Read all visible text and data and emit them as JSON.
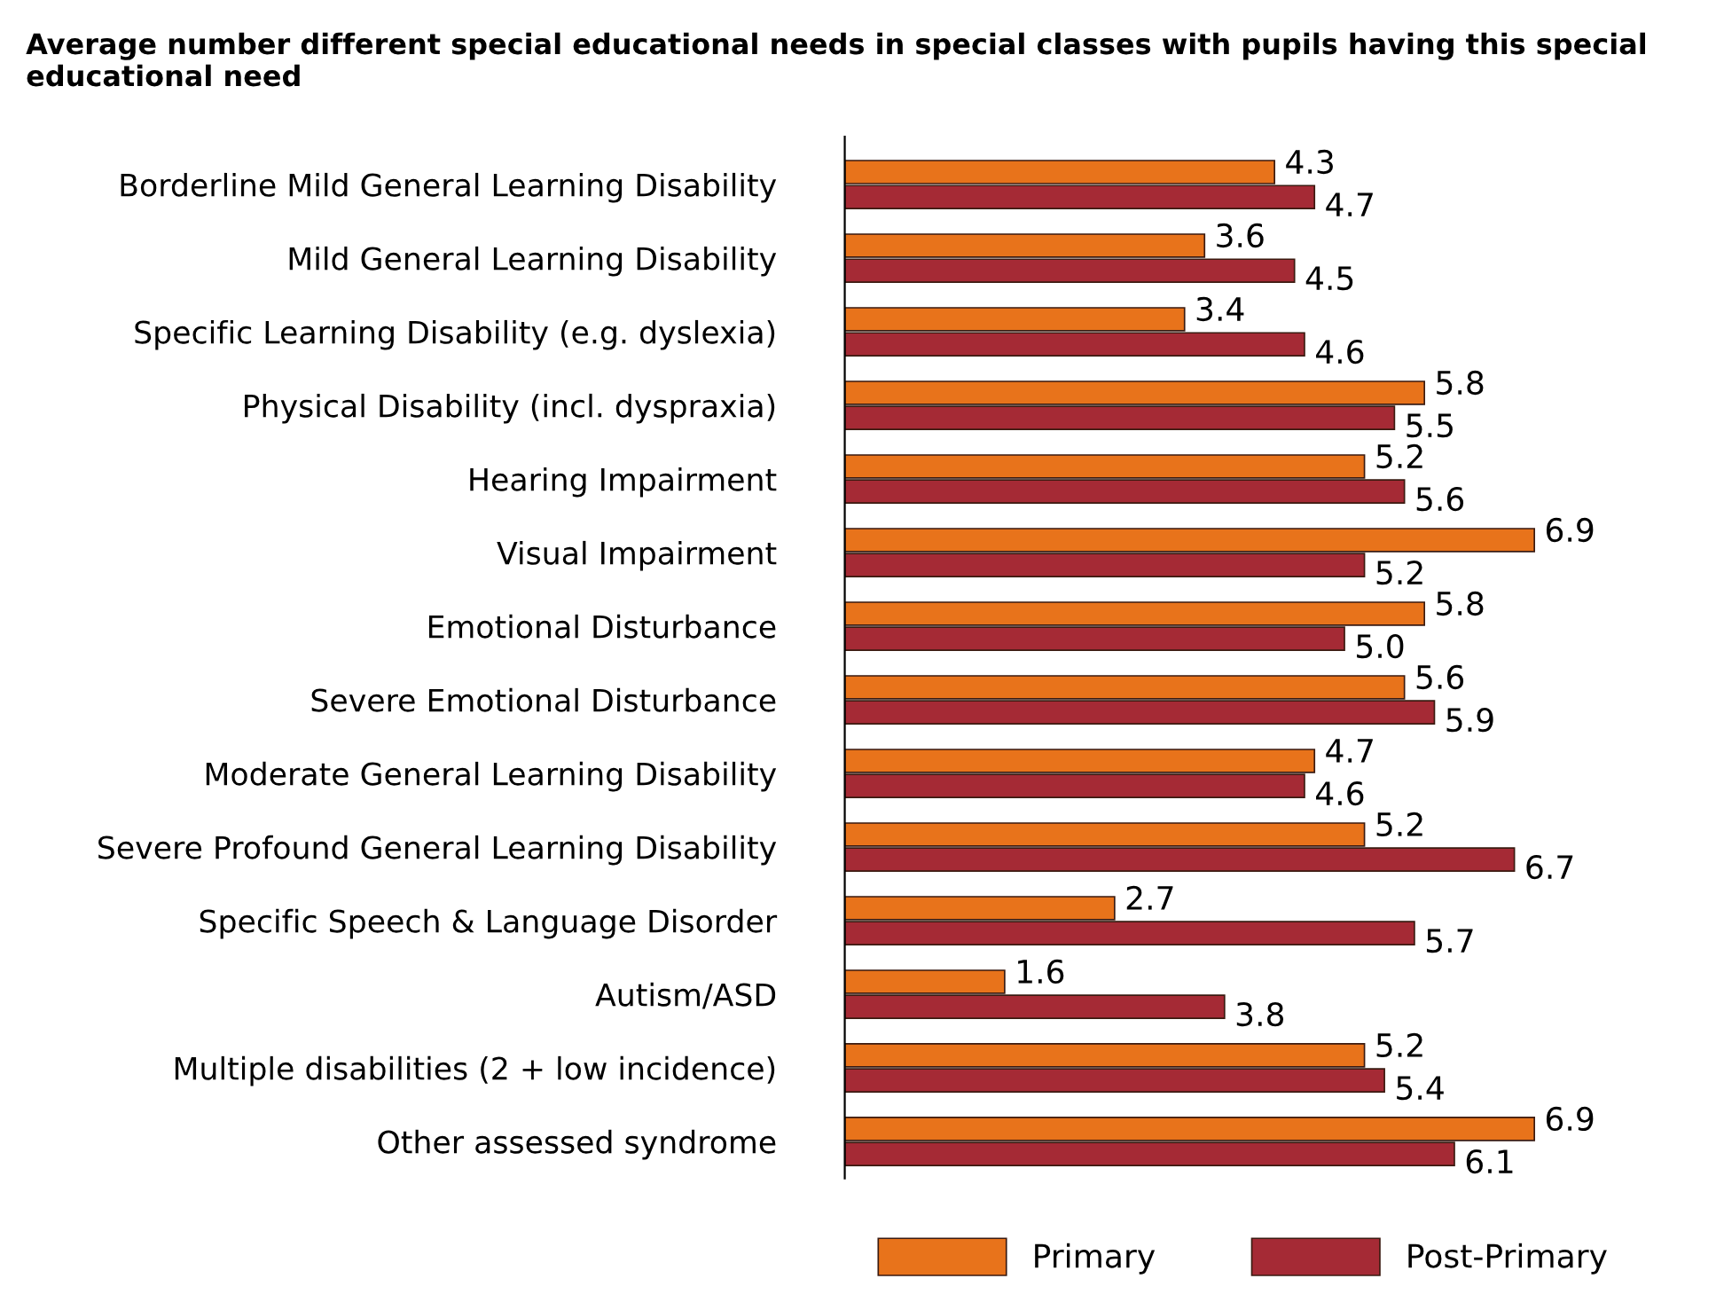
{
  "chart_data": {
    "type": "bar",
    "orientation": "horizontal",
    "title": "Average number different special educational needs in special classes with pupils having this special educational need",
    "categories": [
      "Borderline Mild General Learning Disability",
      "Mild General Learning Disability",
      "Specific Learning Disability (e.g. dyslexia)",
      "Physical Disability (incl. dyspraxia)",
      "Hearing Impairment",
      "Visual Impairment",
      "Emotional Disturbance",
      "Severe Emotional Disturbance",
      "Moderate General Learning Disability",
      "Severe Profound General Learning Disability",
      "Specific Speech & Language Disorder",
      "Autism/ASD",
      "Multiple disabilities (2 + low incidence)",
      "Other assessed syndrome"
    ],
    "series": [
      {
        "name": "Primary",
        "color": "#e8731b",
        "values": [
          4.3,
          3.6,
          3.4,
          5.8,
          5.2,
          6.9,
          5.8,
          5.6,
          4.7,
          5.2,
          2.7,
          1.6,
          5.2,
          6.9
        ],
        "value_labels": [
          "4.3",
          "3.6",
          "3.4",
          "5.8",
          "5.2",
          "6.9",
          "5.8",
          "5.6",
          "4.7",
          "5.2",
          "2.7",
          "1.6",
          "5.2",
          "6.9"
        ]
      },
      {
        "name": "Post-Primary",
        "color": "#a52a35",
        "values": [
          4.7,
          4.5,
          4.6,
          5.5,
          5.6,
          5.2,
          5.0,
          5.9,
          4.6,
          6.7,
          5.7,
          3.8,
          5.4,
          6.1
        ],
        "value_labels": [
          "4.7",
          "4.5",
          "4.6",
          "5.5",
          "5.6",
          "5.2",
          "5.0",
          "5.9",
          "4.6",
          "6.7",
          "5.7",
          "3.8",
          "5.4",
          "6.1"
        ]
      }
    ],
    "legend": "bottom",
    "grid": false,
    "tick_labels": "y"
  }
}
